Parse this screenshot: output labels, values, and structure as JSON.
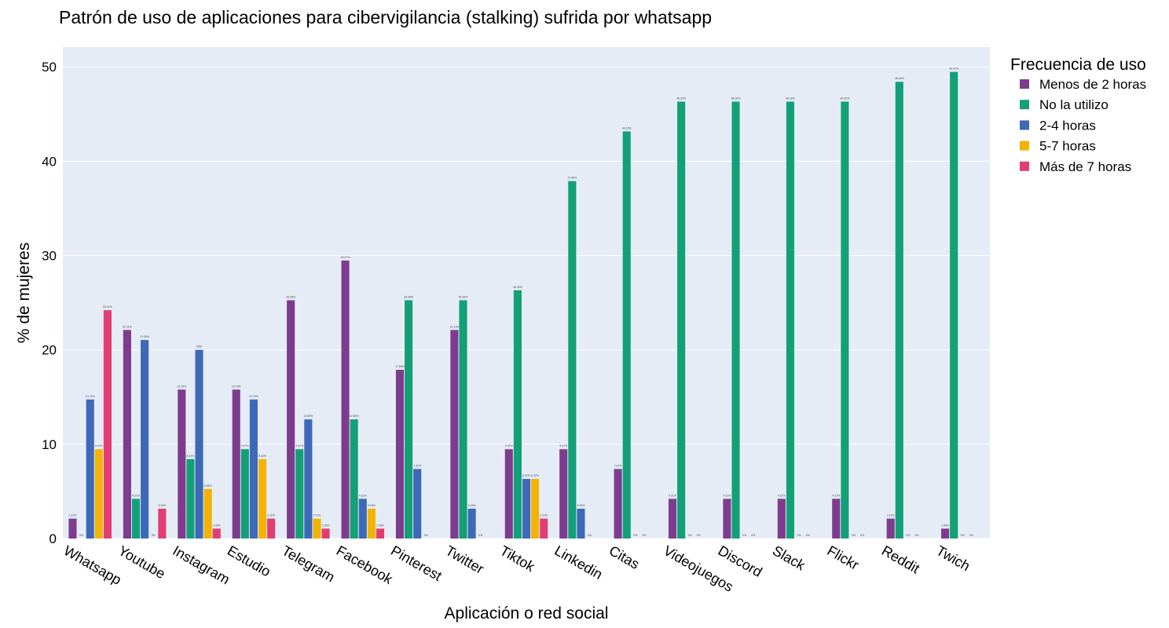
{
  "chart_data": {
    "type": "bar",
    "title": "Patrón de uso de aplicaciones para cibervigilancia (stalking) sufrida por whatsapp",
    "xlabel": "Aplicación o red social",
    "ylabel": "% de mujeres",
    "ylim": [
      0,
      52.1
    ],
    "yticks": [
      0,
      10,
      20,
      30,
      40,
      50
    ],
    "grid": true,
    "legend_title": "Frecuencia de uso",
    "legend_position": "top-right",
    "categories": [
      "Whatsapp",
      "Youtube",
      "Instagram",
      "Estudio",
      "Telegram",
      "Facebook",
      "Pinterest",
      "Twitter",
      "Tiktok",
      "Linkedin",
      "Citas",
      "Videojuegos",
      "Discord",
      "Slack",
      "Flickr",
      "Reddit",
      "Twich"
    ],
    "series": [
      {
        "name": "Menos de 2 horas",
        "color": "#7e3c8f",
        "values": [
          2.11,
          22.11,
          15.79,
          15.79,
          25.26,
          29.47,
          17.89,
          22.11,
          9.47,
          9.47,
          7.37,
          4.21,
          4.21,
          4.21,
          4.21,
          2.11,
          1.05
        ],
        "labels": [
          "2.11%",
          "22.11%",
          "15.79%",
          "15.79%",
          "25.26%",
          "29.47%",
          "17.89%",
          "22.11%",
          "9.47%",
          "9.47%",
          "7.37%",
          "4.21%",
          "4.21%",
          "4.21%",
          "4.21%",
          "2.11%",
          "1.05%"
        ]
      },
      {
        "name": "No la utilizo",
        "color": "#13a077",
        "values": [
          0,
          4.21,
          8.42,
          9.47,
          9.47,
          12.63,
          25.26,
          25.26,
          26.32,
          37.89,
          43.16,
          46.32,
          46.32,
          46.32,
          46.32,
          48.42,
          49.47
        ],
        "labels": [
          "0%",
          "4.21%",
          "8.42%",
          "9.47%",
          "9.47%",
          "12.63%",
          "25.26%",
          "25.26%",
          "26.32%",
          "37.89%",
          "43.16%",
          "46.32%",
          "46.32%",
          "46.32%",
          "46.32%",
          "48.42%",
          "49.47%"
        ]
      },
      {
        "name": "2-4 horas",
        "color": "#3e69b8",
        "values": [
          14.74,
          21.05,
          20,
          14.74,
          12.63,
          4.21,
          7.37,
          3.16,
          6.32,
          3.16,
          0,
          0,
          0,
          0,
          0,
          0,
          0
        ],
        "labels": [
          "14.74%",
          "21.05%",
          "20%",
          "14.74%",
          "12.63%",
          "4.21%",
          "7.37%",
          "3.16%",
          "6.32%",
          "3.16%",
          "0%",
          "0%",
          "0%",
          "0%",
          "0%",
          "0%",
          "0%"
        ]
      },
      {
        "name": "5-7 horas",
        "color": "#f2b304",
        "values": [
          9.47,
          0,
          5.26,
          8.42,
          2.11,
          3.16,
          0,
          0,
          6.32,
          0,
          0,
          0,
          0,
          0,
          0,
          0,
          0
        ],
        "labels": [
          "9.47%",
          "0%",
          "5.26%",
          "8.42%",
          "2.11%",
          "3.16%",
          "0%",
          "0%",
          "6.32%",
          "0%",
          "0%",
          "0%",
          "0%",
          "0%",
          "0%",
          "0%",
          "0%"
        ]
      },
      {
        "name": "Más de 7 horas",
        "color": "#e23d72",
        "values": [
          24.21,
          3.16,
          1.05,
          2.11,
          1.05,
          1.05,
          0,
          0,
          2.11,
          0,
          0,
          0,
          0,
          0,
          0,
          0,
          0
        ],
        "labels": [
          "24.21%",
          "3.16%",
          "1.05%",
          "2.11%",
          "1.05%",
          "1.05%",
          "",
          "",
          "2.11%",
          "",
          "",
          "",
          "",
          "",
          "",
          "",
          ""
        ]
      }
    ]
  }
}
